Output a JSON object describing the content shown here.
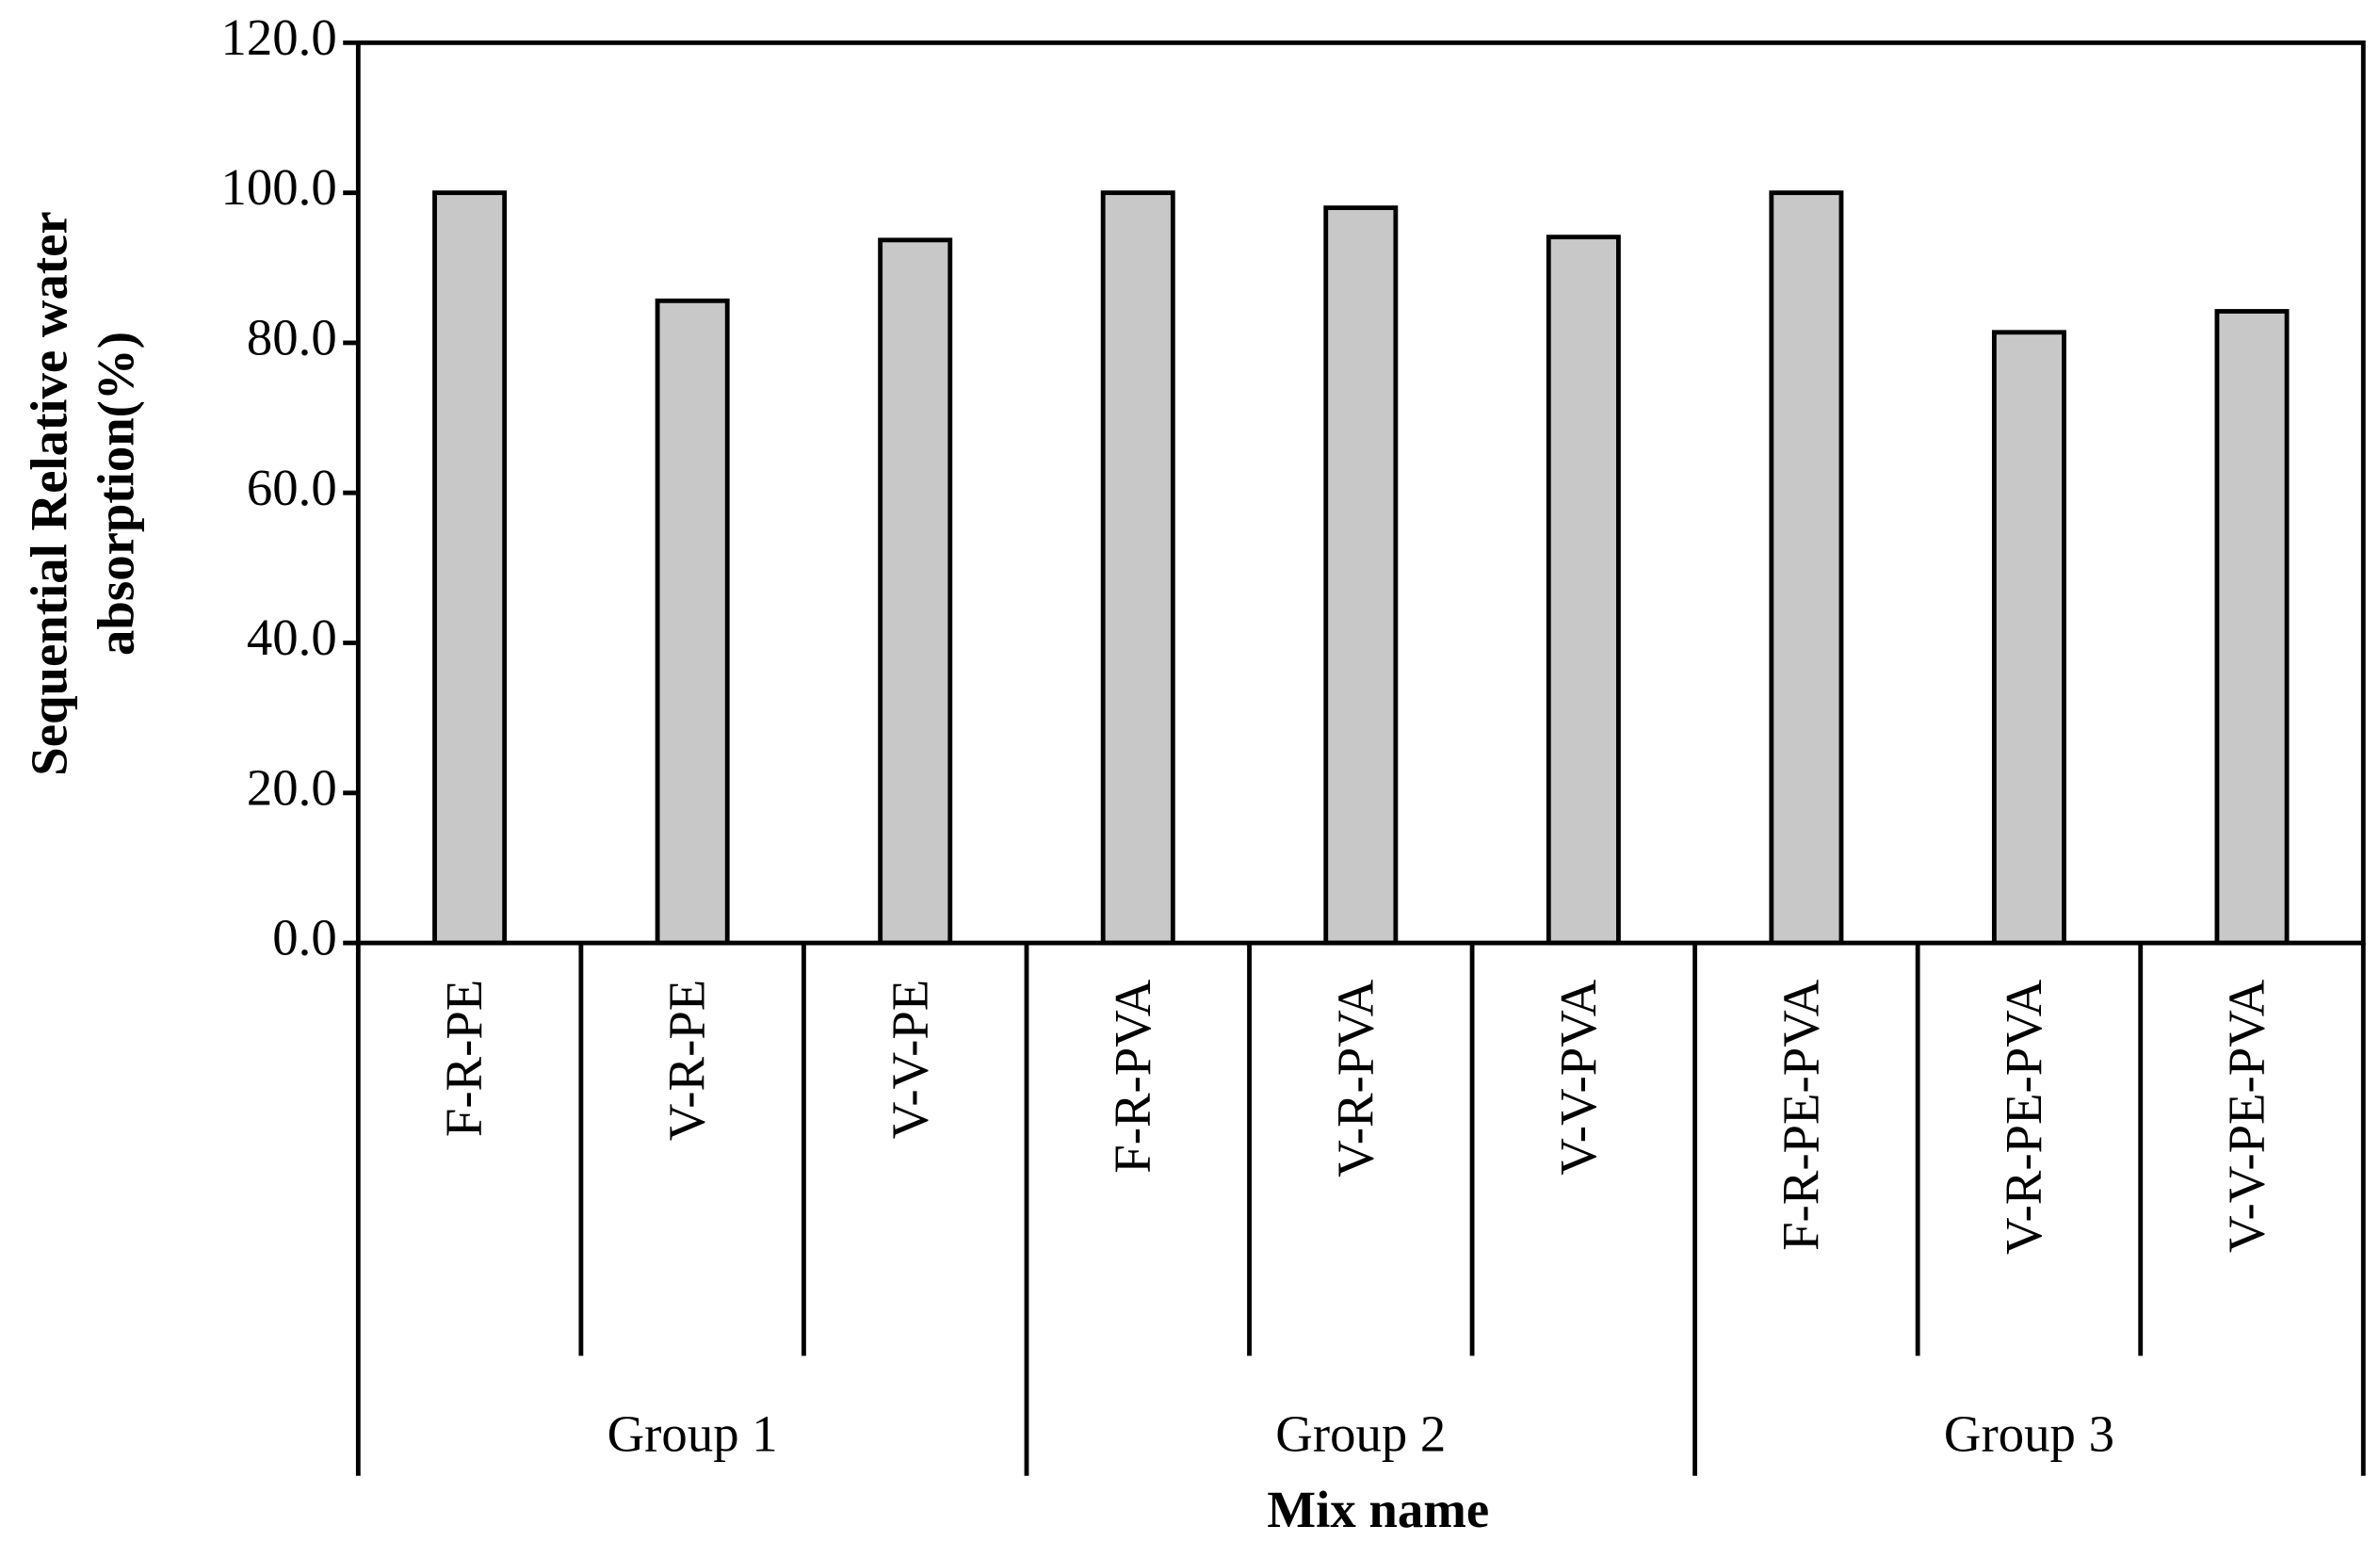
{
  "chart_data": {
    "type": "bar",
    "y_label": [
      "Sequential Relative water",
      "absorption(%)"
    ],
    "x_label": "Mix name",
    "color": "#c8c8c8",
    "groups": [
      {
        "name": "Group 1",
        "categories": [
          "F-R-PE",
          "V-R-PE",
          "V-V-PE"
        ],
        "values": [
          100,
          85.6,
          93.7
        ]
      },
      {
        "name": "Group 2",
        "categories": [
          "F-R-PVA",
          "V-R-PVA",
          "V-V-PVA"
        ],
        "values": [
          100,
          98.0,
          94.1
        ]
      },
      {
        "name": "Group 3",
        "categories": [
          "F-R-PE-PVA",
          "V-R-PE-PVA",
          "V-V-PE-PVA"
        ],
        "values": [
          100,
          81.4,
          84.2
        ]
      }
    ],
    "ylim": [
      0,
      120
    ],
    "yticks": [
      {
        "value": 0,
        "label": "0.0"
      },
      {
        "value": 20,
        "label": "20.0"
      },
      {
        "value": 40,
        "label": "40.0"
      },
      {
        "value": 60,
        "label": "60.0"
      },
      {
        "value": 80,
        "label": "80.0"
      },
      {
        "value": 100,
        "label": "100.0"
      },
      {
        "value": 120,
        "label": "120.0"
      }
    ]
  }
}
